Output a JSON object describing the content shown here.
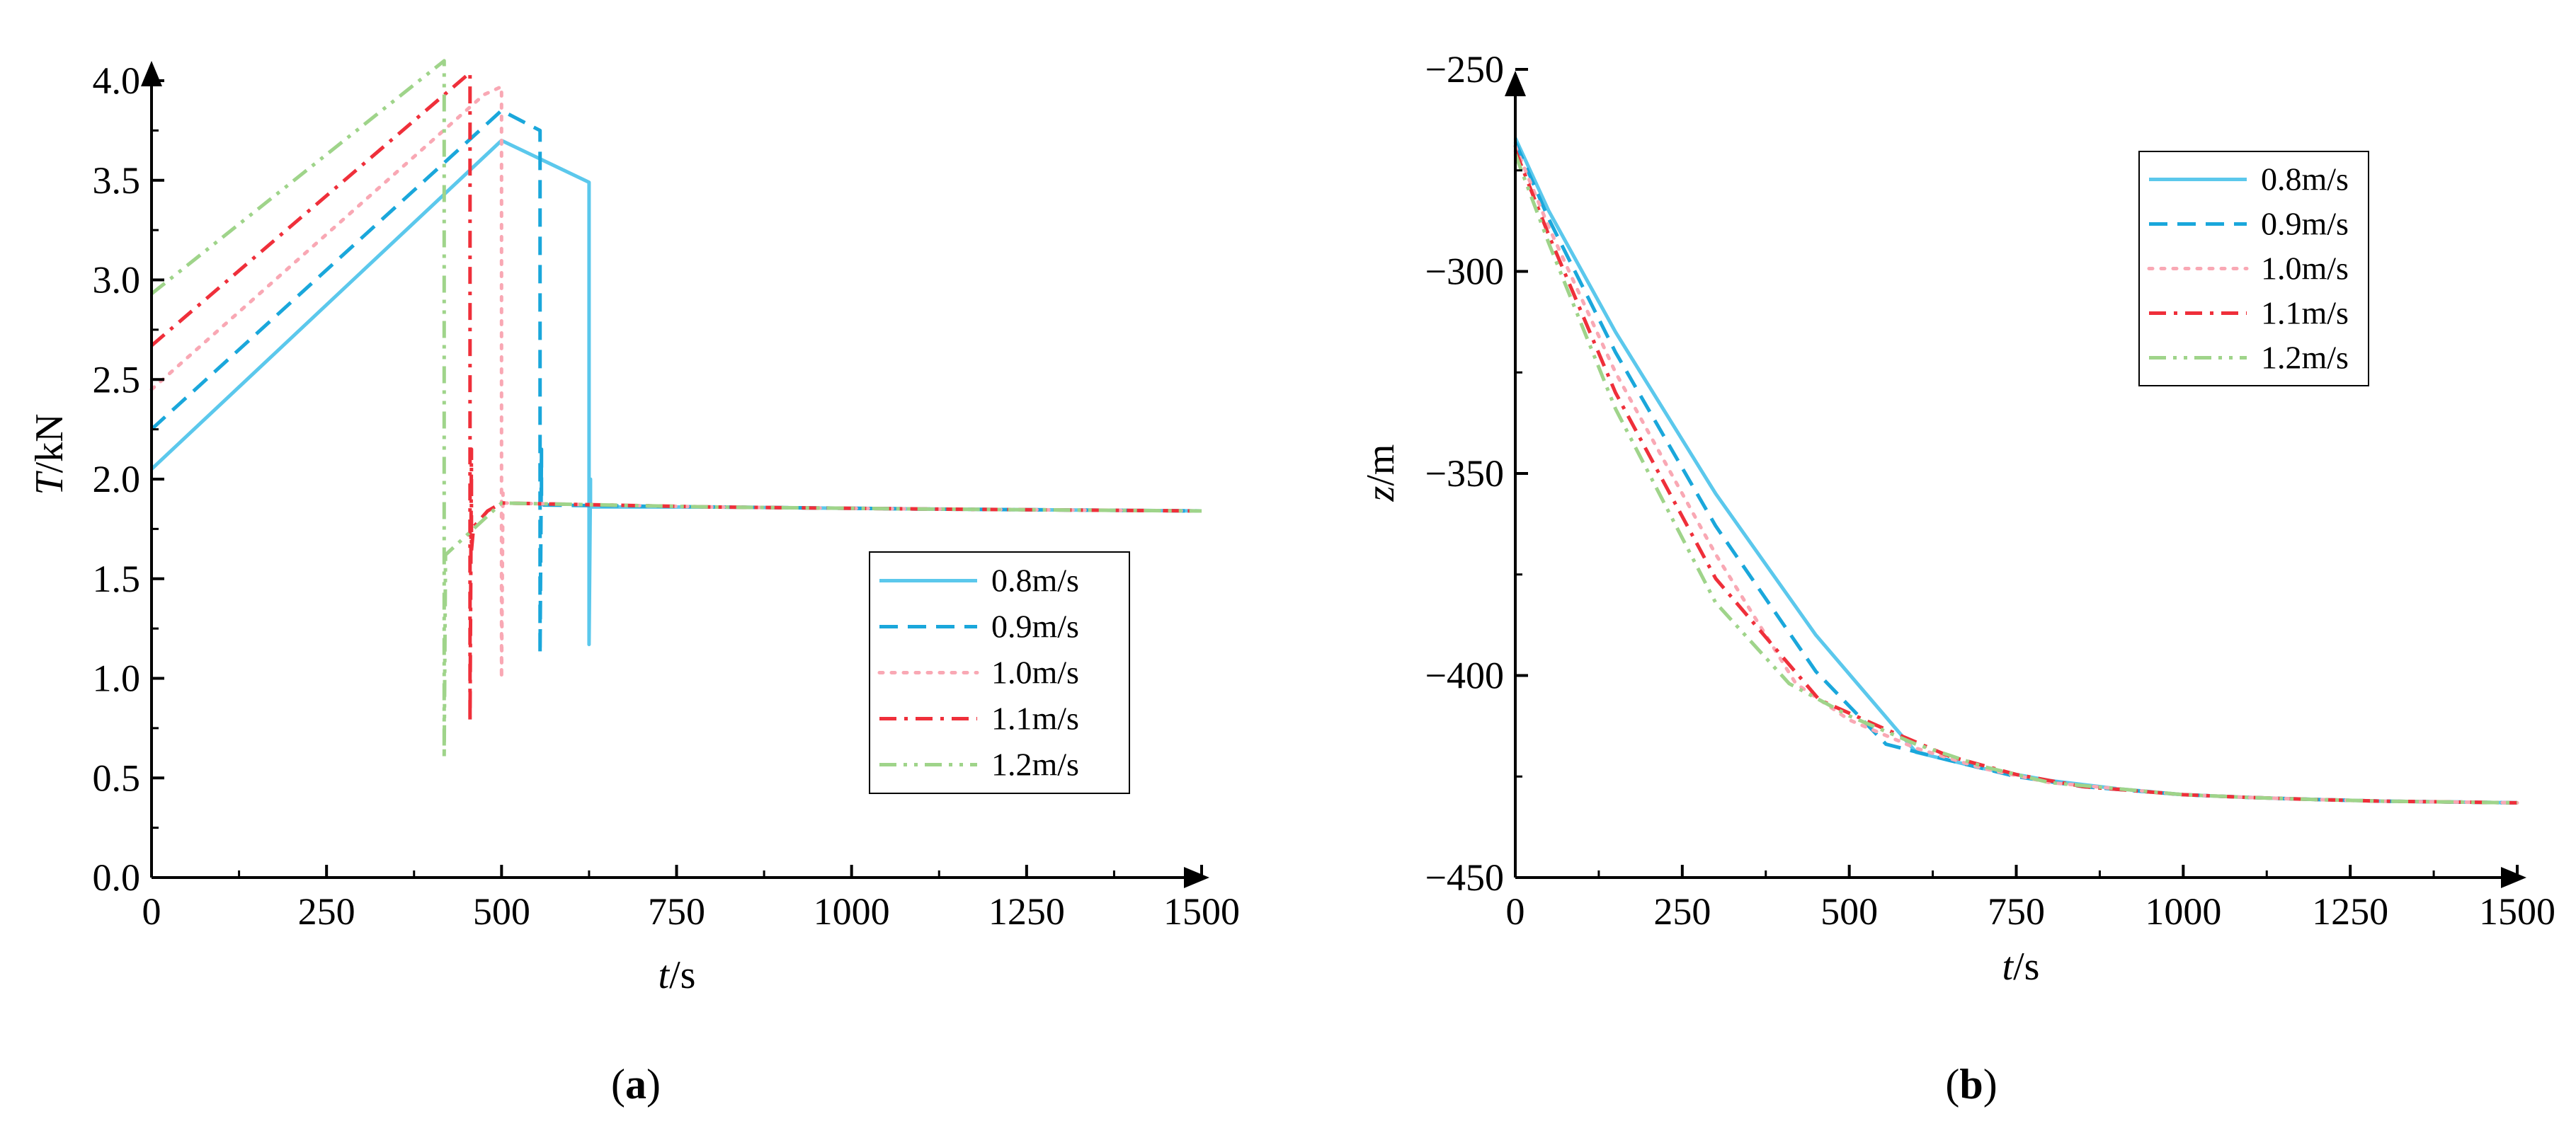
{
  "figure": {
    "panels": [
      {
        "id": "a",
        "label_open": "(",
        "label_letter": "a",
        "label_close": ")"
      },
      {
        "id": "b",
        "label_open": "(",
        "label_letter": "b",
        "label_close": ")"
      }
    ]
  },
  "chart_data": [
    {
      "id": "a",
      "type": "line",
      "title": "",
      "xlabel_var": "t",
      "xlabel_unit": "/s",
      "ylabel_var": "T",
      "ylabel_unit": "/kN",
      "xlim": [
        0,
        1500
      ],
      "ylim": [
        0,
        4.0
      ],
      "xticks": [
        0,
        250,
        500,
        750,
        1000,
        1250,
        1500
      ],
      "xtick_labels": [
        "0",
        "250",
        "500",
        "750",
        "1000",
        "1250",
        "1500"
      ],
      "yticks": [
        0,
        0.5,
        1.0,
        1.5,
        2.0,
        2.5,
        3.0,
        3.5,
        4.0
      ],
      "ytick_labels": [
        "0.0",
        "0.5",
        "1.0",
        "1.5",
        "2.0",
        "2.5",
        "3.0",
        "3.5",
        "4.0"
      ],
      "grid": false,
      "legend_position": "center-right",
      "series": [
        {
          "name": "0.8m/s",
          "color": "#5bc8ec",
          "dash": "solid",
          "x": [
            0,
            500,
            625,
            625,
            627,
            627,
            630,
            800,
            1100,
            1500
          ],
          "y": [
            2.05,
            3.7,
            3.49,
            1.17,
            2.0,
            1.87,
            1.86,
            1.86,
            1.85,
            1.84
          ]
        },
        {
          "name": "0.9m/s",
          "color": "#1aa7db",
          "dash": "dashed",
          "x": [
            0,
            500,
            555,
            555,
            557,
            557,
            560,
            800,
            1100,
            1500
          ],
          "y": [
            2.25,
            3.85,
            3.75,
            1.12,
            2.15,
            1.88,
            1.87,
            1.86,
            1.85,
            1.84
          ]
        },
        {
          "name": "1.0m/s",
          "color": "#f9a8b4",
          "dash": "dotted",
          "x": [
            0,
            475,
            500,
            500,
            502,
            502,
            505,
            800,
            1100,
            1500
          ],
          "y": [
            2.45,
            3.93,
            3.97,
            1.0,
            1.93,
            1.88,
            1.88,
            1.86,
            1.85,
            1.84
          ]
        },
        {
          "name": "1.1m/s",
          "color": "#ef2f3a",
          "dash": "dashdot",
          "x": [
            0,
            455,
            455,
            457,
            457,
            460,
            480,
            500,
            800,
            1100,
            1500
          ],
          "y": [
            2.67,
            4.04,
            0.78,
            2.15,
            1.64,
            1.76,
            1.84,
            1.88,
            1.86,
            1.85,
            1.84
          ]
        },
        {
          "name": "1.2m/s",
          "color": "#9fd48a",
          "dash": "dashdotdot",
          "x": [
            0,
            418,
            418,
            420,
            500,
            800,
            1100,
            1500
          ],
          "y": [
            2.93,
            4.1,
            0.6,
            1.62,
            1.88,
            1.86,
            1.85,
            1.84
          ]
        }
      ]
    },
    {
      "id": "b",
      "type": "line",
      "title": "",
      "xlabel_var": "t",
      "xlabel_unit": "/s",
      "ylabel_var": "z",
      "ylabel_unit": "/m",
      "xlim": [
        0,
        1500
      ],
      "ylim": [
        -450,
        -250
      ],
      "xticks": [
        0,
        250,
        500,
        750,
        1000,
        1250,
        1500
      ],
      "xtick_labels": [
        "0",
        "250",
        "500",
        "750",
        "1000",
        "1250",
        "1500"
      ],
      "yticks": [
        -450,
        -400,
        -350,
        -300,
        -250
      ],
      "ytick_labels": [
        "−450",
        "−400",
        "−350",
        "−300",
        "−250"
      ],
      "grid": false,
      "legend_position": "top-right",
      "series": [
        {
          "name": "0.8m/s",
          "color": "#5bc8ec",
          "dash": "solid",
          "x": [
            0,
            50,
            150,
            300,
            450,
            600,
            700,
            800,
            900,
            1000,
            1100,
            1200,
            1300,
            1400,
            1500
          ],
          "y": [
            -267,
            -285,
            -315,
            -355,
            -390,
            -419,
            -423,
            -426,
            -428,
            -429.5,
            -430.2,
            -430.7,
            -431.1,
            -431.3,
            -431.5
          ]
        },
        {
          "name": "0.9m/s",
          "color": "#1aa7db",
          "dash": "dashed",
          "x": [
            0,
            50,
            150,
            300,
            450,
            555,
            650,
            750,
            850,
            1000,
            1100,
            1200,
            1300,
            1400,
            1500
          ],
          "y": [
            -268,
            -287,
            -320,
            -363,
            -399,
            -417,
            -421,
            -425,
            -427.5,
            -429.5,
            -430.2,
            -430.7,
            -431.1,
            -431.3,
            -431.5
          ]
        },
        {
          "name": "1.0m/s",
          "color": "#f9a8b4",
          "dash": "dotted",
          "x": [
            0,
            50,
            150,
            300,
            420,
            500,
            600,
            700,
            800,
            1000,
            1100,
            1200,
            1300,
            1400,
            1500
          ],
          "y": [
            -269,
            -289,
            -325,
            -370,
            -402,
            -411,
            -418,
            -423,
            -426.5,
            -429.5,
            -430.2,
            -430.7,
            -431.1,
            -431.3,
            -431.5
          ]
        },
        {
          "name": "1.1m/s",
          "color": "#ef2f3a",
          "dash": "dashdot",
          "x": [
            0,
            50,
            150,
            300,
            455,
            550,
            650,
            750,
            850,
            1000,
            1100,
            1200,
            1300,
            1400,
            1500
          ],
          "y": [
            -270,
            -291,
            -330,
            -376,
            -406,
            -413,
            -420,
            -424.5,
            -427.5,
            -429.5,
            -430.2,
            -430.7,
            -431.1,
            -431.3,
            -431.5
          ]
        },
        {
          "name": "1.2m/s",
          "color": "#9fd48a",
          "dash": "dashdotdot",
          "x": [
            0,
            50,
            150,
            300,
            410,
            500,
            600,
            700,
            800,
            1000,
            1100,
            1200,
            1300,
            1400,
            1500
          ],
          "y": [
            -271,
            -293,
            -334,
            -382,
            -402,
            -410,
            -417,
            -422.5,
            -426.5,
            -429.5,
            -430.2,
            -430.7,
            -431.1,
            -431.3,
            -431.5
          ]
        }
      ]
    }
  ]
}
